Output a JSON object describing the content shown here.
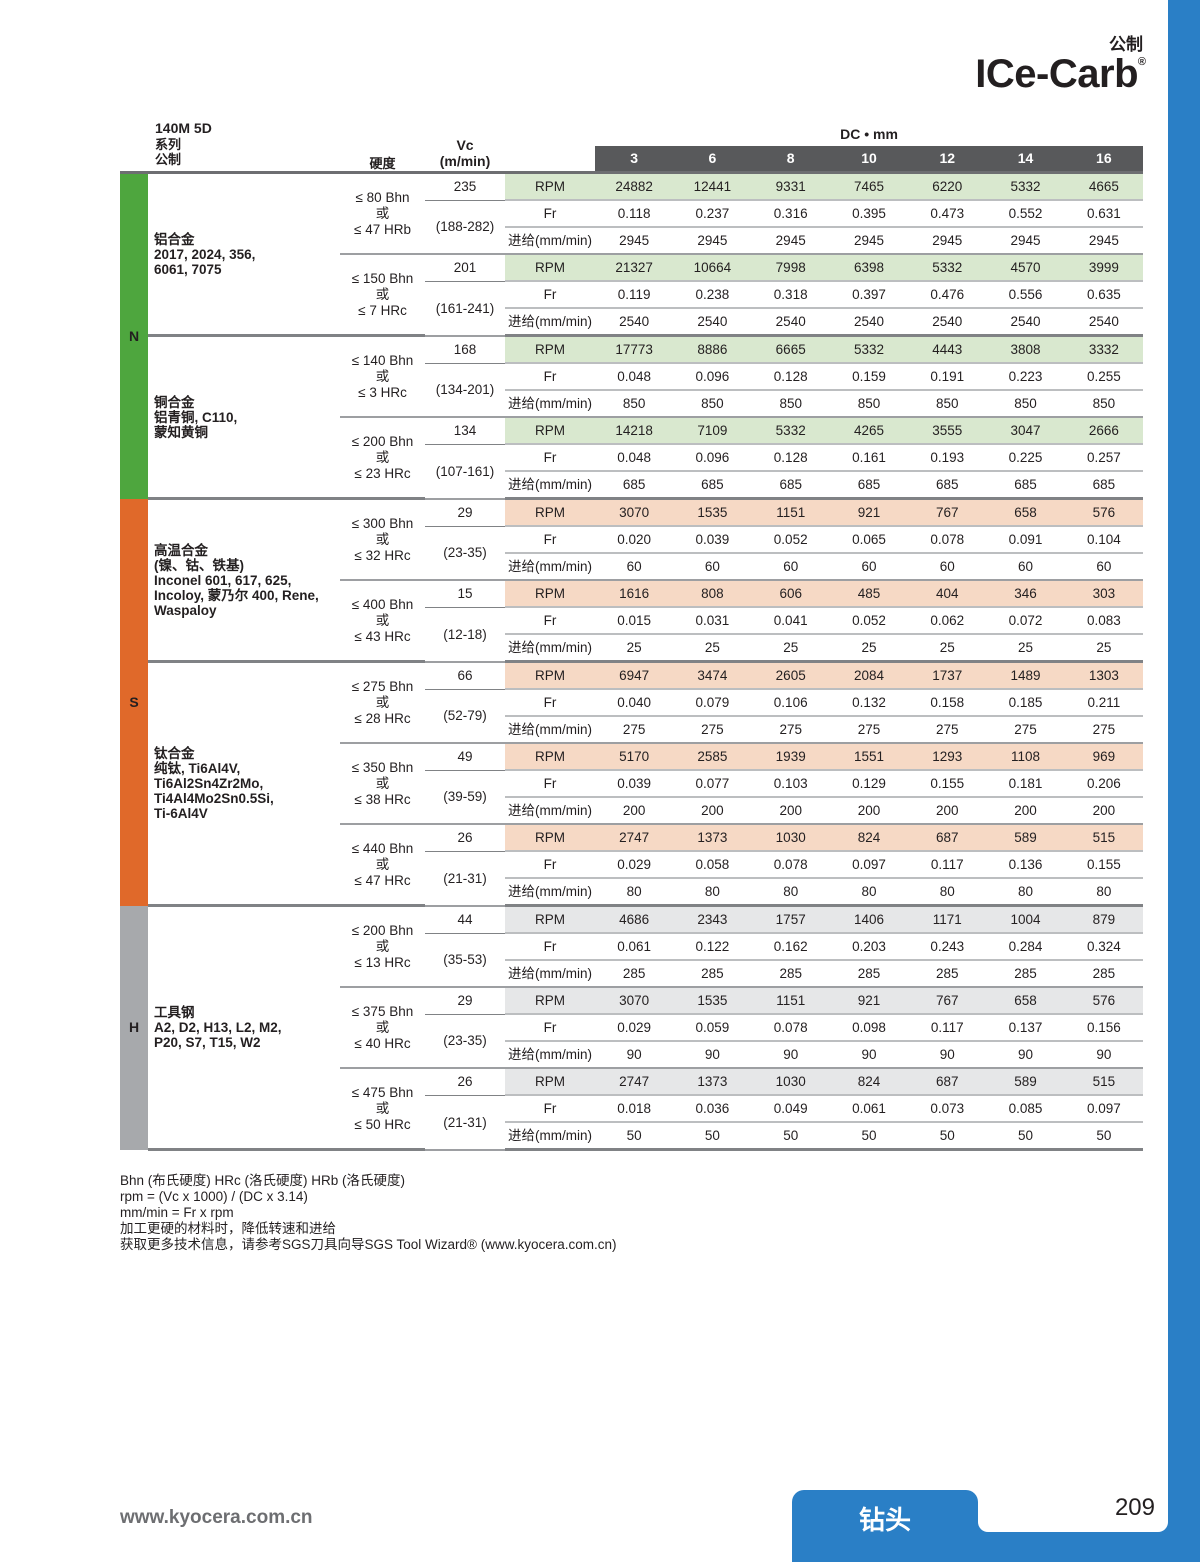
{
  "header": {
    "brand_sub": "公制",
    "brand": "ICe-Carb",
    "reg": "®"
  },
  "table_title": {
    "series": "140M 5D",
    "line2": "系列",
    "line3": "公制"
  },
  "columns": {
    "hardness": "硬度",
    "vc": "Vc",
    "vc_unit": "(m/min)",
    "dc": "DC • mm",
    "diameters": [
      "3",
      "6",
      "8",
      "10",
      "12",
      "14",
      "16"
    ]
  },
  "row_labels": {
    "rpm": "RPM",
    "fr": "Fr",
    "feed": "进给(mm/min)"
  },
  "colors": {
    "accent": "#2a7fc6",
    "header_bar": "#58595b"
  },
  "classes": [
    {
      "letter": "N",
      "color": "#4ea63e",
      "rpm_bg": "#d9e8cf",
      "materials": [
        {
          "name_lines": [
            "铝合金",
            "2017, 2024, 356,",
            "6061, 7075"
          ],
          "groups": [
            {
              "hardness": [
                "≤ 80 Bhn",
                "或",
                "≤ 47 HRb"
              ],
              "vc": "235",
              "vc_range": "(188-282)",
              "rpm": [
                "24882",
                "12441",
                "9331",
                "7465",
                "6220",
                "5332",
                "4665"
              ],
              "fr": [
                "0.118",
                "0.237",
                "0.316",
                "0.395",
                "0.473",
                "0.552",
                "0.631"
              ],
              "feed": [
                "2945",
                "2945",
                "2945",
                "2945",
                "2945",
                "2945",
                "2945"
              ]
            },
            {
              "hardness": [
                "≤ 150 Bhn",
                "或",
                "≤ 7 HRc"
              ],
              "vc": "201",
              "vc_range": "(161-241)",
              "rpm": [
                "21327",
                "10664",
                "7998",
                "6398",
                "5332",
                "4570",
                "3999"
              ],
              "fr": [
                "0.119",
                "0.238",
                "0.318",
                "0.397",
                "0.476",
                "0.556",
                "0.635"
              ],
              "feed": [
                "2540",
                "2540",
                "2540",
                "2540",
                "2540",
                "2540",
                "2540"
              ]
            }
          ]
        },
        {
          "name_lines": [
            "铜合金",
            "铝青铜, C110,",
            "蒙知黄铜"
          ],
          "groups": [
            {
              "hardness": [
                "≤ 140 Bhn",
                "或",
                "≤ 3 HRc"
              ],
              "vc": "168",
              "vc_range": "(134-201)",
              "rpm": [
                "17773",
                "8886",
                "6665",
                "5332",
                "4443",
                "3808",
                "3332"
              ],
              "fr": [
                "0.048",
                "0.096",
                "0.128",
                "0.159",
                "0.191",
                "0.223",
                "0.255"
              ],
              "feed": [
                "850",
                "850",
                "850",
                "850",
                "850",
                "850",
                "850"
              ]
            },
            {
              "hardness": [
                "≤ 200 Bhn",
                "或",
                "≤ 23 HRc"
              ],
              "vc": "134",
              "vc_range": "(107-161)",
              "rpm": [
                "14218",
                "7109",
                "5332",
                "4265",
                "3555",
                "3047",
                "2666"
              ],
              "fr": [
                "0.048",
                "0.096",
                "0.128",
                "0.161",
                "0.193",
                "0.225",
                "0.257"
              ],
              "feed": [
                "685",
                "685",
                "685",
                "685",
                "685",
                "685",
                "685"
              ]
            }
          ]
        }
      ]
    },
    {
      "letter": "S",
      "color": "#e0692a",
      "rpm_bg": "#f6d9c5",
      "materials": [
        {
          "name_lines": [
            "高温合金",
            "(镍、钴、铁基)",
            "Inconel 601, 617, 625,",
            "Incoloy, 蒙乃尔 400, Rene,",
            "Waspaloy"
          ],
          "groups": [
            {
              "hardness": [
                "≤ 300 Bhn",
                "或",
                "≤ 32 HRc"
              ],
              "vc": "29",
              "vc_range": "(23-35)",
              "rpm": [
                "3070",
                "1535",
                "1151",
                "921",
                "767",
                "658",
                "576"
              ],
              "fr": [
                "0.020",
                "0.039",
                "0.052",
                "0.065",
                "0.078",
                "0.091",
                "0.104"
              ],
              "feed": [
                "60",
                "60",
                "60",
                "60",
                "60",
                "60",
                "60"
              ]
            },
            {
              "hardness": [
                "≤ 400 Bhn",
                "或",
                "≤ 43 HRc"
              ],
              "vc": "15",
              "vc_range": "(12-18)",
              "rpm": [
                "1616",
                "808",
                "606",
                "485",
                "404",
                "346",
                "303"
              ],
              "fr": [
                "0.015",
                "0.031",
                "0.041",
                "0.052",
                "0.062",
                "0.072",
                "0.083"
              ],
              "feed": [
                "25",
                "25",
                "25",
                "25",
                "25",
                "25",
                "25"
              ]
            }
          ]
        },
        {
          "name_lines": [
            "钛合金",
            "纯钛, Ti6Al4V,",
            "Ti6Al2Sn4Zr2Mo,",
            "Ti4Al4Mo2Sn0.5Si,",
            "Ti-6Al4V"
          ],
          "groups": [
            {
              "hardness": [
                "≤ 275 Bhn",
                "或",
                "≤ 28 HRc"
              ],
              "vc": "66",
              "vc_range": "(52-79)",
              "rpm": [
                "6947",
                "3474",
                "2605",
                "2084",
                "1737",
                "1489",
                "1303"
              ],
              "fr": [
                "0.040",
                "0.079",
                "0.106",
                "0.132",
                "0.158",
                "0.185",
                "0.211"
              ],
              "feed": [
                "275",
                "275",
                "275",
                "275",
                "275",
                "275",
                "275"
              ]
            },
            {
              "hardness": [
                "≤ 350 Bhn",
                "或",
                "≤ 38 HRc"
              ],
              "vc": "49",
              "vc_range": "(39-59)",
              "rpm": [
                "5170",
                "2585",
                "1939",
                "1551",
                "1293",
                "1108",
                "969"
              ],
              "fr": [
                "0.039",
                "0.077",
                "0.103",
                "0.129",
                "0.155",
                "0.181",
                "0.206"
              ],
              "feed": [
                "200",
                "200",
                "200",
                "200",
                "200",
                "200",
                "200"
              ]
            },
            {
              "hardness": [
                "≤ 440 Bhn",
                "或",
                "≤ 47 HRc"
              ],
              "vc": "26",
              "vc_range": "(21-31)",
              "rpm": [
                "2747",
                "1373",
                "1030",
                "824",
                "687",
                "589",
                "515"
              ],
              "fr": [
                "0.029",
                "0.058",
                "0.078",
                "0.097",
                "0.117",
                "0.136",
                "0.155"
              ],
              "feed": [
                "80",
                "80",
                "80",
                "80",
                "80",
                "80",
                "80"
              ]
            }
          ]
        }
      ]
    },
    {
      "letter": "H",
      "color": "#a7a9ac",
      "rpm_bg": "#e6e7e8",
      "materials": [
        {
          "name_lines": [
            "工具钢",
            "A2, D2, H13, L2, M2,",
            "P20, S7, T15, W2"
          ],
          "groups": [
            {
              "hardness": [
                "≤ 200 Bhn",
                "或",
                "≤ 13 HRc"
              ],
              "vc": "44",
              "vc_range": "(35-53)",
              "rpm": [
                "4686",
                "2343",
                "1757",
                "1406",
                "1171",
                "1004",
                "879"
              ],
              "fr": [
                "0.061",
                "0.122",
                "0.162",
                "0.203",
                "0.243",
                "0.284",
                "0.324"
              ],
              "feed": [
                "285",
                "285",
                "285",
                "285",
                "285",
                "285",
                "285"
              ]
            },
            {
              "hardness": [
                "≤ 375 Bhn",
                "或",
                "≤ 40 HRc"
              ],
              "vc": "29",
              "vc_range": "(23-35)",
              "rpm": [
                "3070",
                "1535",
                "1151",
                "921",
                "767",
                "658",
                "576"
              ],
              "fr": [
                "0.029",
                "0.059",
                "0.078",
                "0.098",
                "0.117",
                "0.137",
                "0.156"
              ],
              "feed": [
                "90",
                "90",
                "90",
                "90",
                "90",
                "90",
                "90"
              ]
            },
            {
              "hardness": [
                "≤ 475 Bhn",
                "或",
                "≤ 50 HRc"
              ],
              "vc": "26",
              "vc_range": "(21-31)",
              "rpm": [
                "2747",
                "1373",
                "1030",
                "824",
                "687",
                "589",
                "515"
              ],
              "fr": [
                "0.018",
                "0.036",
                "0.049",
                "0.061",
                "0.073",
                "0.085",
                "0.097"
              ],
              "feed": [
                "50",
                "50",
                "50",
                "50",
                "50",
                "50",
                "50"
              ]
            }
          ]
        }
      ]
    }
  ],
  "footnotes": [
    "Bhn (布氏硬度)    HRc (洛氏硬度)    HRb (洛氏硬度)",
    "rpm = (Vc x 1000) / (DC x 3.14)",
    "mm/min = Fr x rpm",
    "加工更硬的材料时，降低转速和进给",
    "获取更多技术信息，请参考SGS刀具向导SGS Tool Wizard® (www.kyocera.com.cn)"
  ],
  "footer": {
    "url": "www.kyocera.com.cn",
    "tab": "钻头",
    "page": "209"
  }
}
